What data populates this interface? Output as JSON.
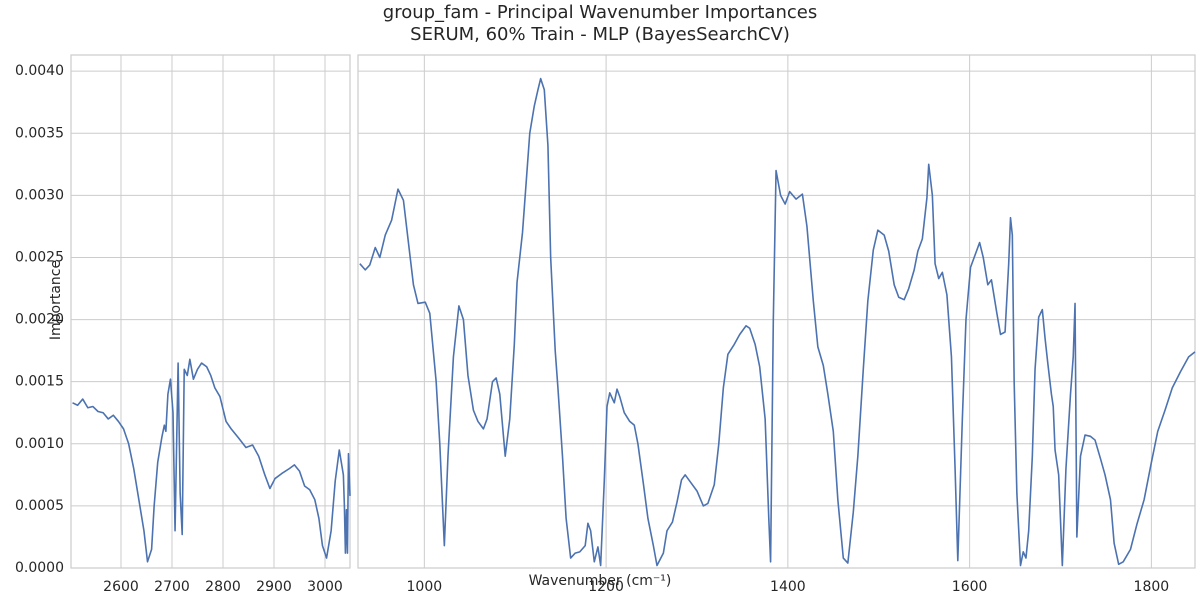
{
  "chart_data": {
    "type": "line",
    "title": "group_fam - Principal Wavenumber Importances",
    "subtitle": "SERUM, 60% Train - MLP (BayesSearchCV)",
    "xlabel": "Wavenumber (cm⁻¹)",
    "ylabel": "Importance",
    "color": "#4c72b0",
    "grid": true,
    "ylim": [
      0,
      0.00413
    ],
    "yticks": [
      {
        "value": 0,
        "label": "0.0000"
      },
      0.0005,
      {
        "value": 0.001,
        "label": "0.0010"
      },
      0.0015,
      {
        "value": 0.002,
        "label": "0.0020"
      },
      0.0025,
      {
        "value": 0.003,
        "label": "0.0030"
      },
      0.0035,
      {
        "value": 0.004,
        "label": "0.0040"
      }
    ],
    "panels": [
      {
        "xlim": [
          2502,
          3049
        ],
        "xticks": [
          2600,
          2700,
          2800,
          2900,
          3000
        ],
        "x": [
          2505,
          2515,
          2525,
          2535,
          2545,
          2555,
          2565,
          2575,
          2585,
          2595,
          2605,
          2615,
          2625,
          2635,
          2645,
          2652,
          2660,
          2665,
          2672,
          2680,
          2685,
          2688,
          2692,
          2697,
          2702,
          2706,
          2712,
          2716,
          2720,
          2724,
          2730,
          2735,
          2742,
          2750,
          2758,
          2768,
          2776,
          2784,
          2794,
          2806,
          2816,
          2830,
          2845,
          2858,
          2870,
          2882,
          2892,
          2902,
          2915,
          2930,
          2940,
          2950,
          2960,
          2970,
          2980,
          2988,
          2995,
          3003,
          3012,
          3020,
          3028,
          3036,
          3038,
          3040,
          3042,
          3044,
          3046,
          3049
        ],
        "values": [
          0.00133,
          0.00131,
          0.00136,
          0.00129,
          0.0013,
          0.00126,
          0.00125,
          0.0012,
          0.00123,
          0.00118,
          0.00112,
          0.001,
          0.0008,
          0.00055,
          0.0003,
          5e-05,
          0.00015,
          0.0005,
          0.00085,
          0.00105,
          0.00115,
          0.0011,
          0.0014,
          0.00152,
          0.00125,
          0.0003,
          0.00165,
          0.0006,
          0.00027,
          0.0016,
          0.00155,
          0.00168,
          0.00152,
          0.0016,
          0.00165,
          0.00162,
          0.00155,
          0.00145,
          0.00138,
          0.00118,
          0.00112,
          0.00105,
          0.00097,
          0.00099,
          0.0009,
          0.00075,
          0.00064,
          0.00072,
          0.00076,
          0.0008,
          0.00083,
          0.00078,
          0.00066,
          0.00063,
          0.00055,
          0.0004,
          0.00018,
          8e-05,
          0.0003,
          0.0007,
          0.00095,
          0.00075,
          0.0005,
          0.00012,
          0.00047,
          0.00012,
          0.00092,
          0.00058
        ]
      },
      {
        "xlim": [
          927,
          1848
        ],
        "xticks": [
          1000,
          1200,
          1400,
          1600,
          1800
        ],
        "x": [
          929,
          935,
          940,
          946,
          951,
          957,
          964,
          971,
          977,
          982,
          988,
          993,
          1001,
          1006,
          1013,
          1017,
          1022,
          1026,
          1032,
          1038,
          1043,
          1048,
          1054,
          1059,
          1065,
          1069,
          1075,
          1079,
          1083,
          1089,
          1094,
          1099,
          1102,
          1108,
          1112,
          1116,
          1121,
          1125,
          1128,
          1132,
          1136,
          1139,
          1144,
          1147,
          1152,
          1156,
          1161,
          1166,
          1171,
          1177,
          1180,
          1183,
          1187,
          1191,
          1194,
          1198,
          1201,
          1204,
          1209,
          1212,
          1215,
          1220,
          1226,
          1231,
          1235,
          1241,
          1246,
          1252,
          1256,
          1263,
          1267,
          1273,
          1278,
          1283,
          1287,
          1292,
          1300,
          1307,
          1312,
          1319,
          1324,
          1329,
          1334,
          1341,
          1347,
          1354,
          1358,
          1364,
          1369,
          1375,
          1379,
          1381,
          1384,
          1387,
          1392,
          1397,
          1402,
          1409,
          1416,
          1421,
          1428,
          1433,
          1439,
          1444,
          1450,
          1455,
          1461,
          1466,
          1472,
          1477,
          1483,
          1488,
          1494,
          1499,
          1506,
          1511,
          1517,
          1522,
          1528,
          1533,
          1539,
          1543,
          1548,
          1553,
          1555,
          1559,
          1562,
          1566,
          1570,
          1575,
          1580,
          1584,
          1587,
          1592,
          1596,
          1601,
          1606,
          1611,
          1615,
          1620,
          1624,
          1630,
          1634,
          1639,
          1643,
          1645,
          1647,
          1649,
          1652,
          1656,
          1659,
          1662,
          1665,
          1669,
          1672,
          1676,
          1680,
          1683,
          1686,
          1690,
          1692,
          1694,
          1698,
          1702,
          1706,
          1711,
          1714,
          1716,
          1718,
          1722,
          1727,
          1733,
          1738,
          1744,
          1749,
          1755,
          1759,
          1764,
          1769,
          1777,
          1784,
          1792,
          1800,
          1807,
          1815,
          1823,
          1832,
          1841,
          1848
        ],
        "values": [
          0.00245,
          0.0024,
          0.00244,
          0.00258,
          0.0025,
          0.00268,
          0.0028,
          0.00305,
          0.00296,
          0.00265,
          0.00228,
          0.00213,
          0.00214,
          0.00205,
          0.0015,
          0.001,
          0.00018,
          0.0009,
          0.0017,
          0.00211,
          0.002,
          0.00155,
          0.00127,
          0.00118,
          0.00112,
          0.0012,
          0.0015,
          0.00153,
          0.0014,
          0.0009,
          0.0012,
          0.0018,
          0.0023,
          0.0027,
          0.0031,
          0.0035,
          0.00372,
          0.00385,
          0.00394,
          0.00385,
          0.0034,
          0.0025,
          0.00175,
          0.00145,
          0.0009,
          0.0004,
          8e-05,
          0.00012,
          0.00013,
          0.00018,
          0.00036,
          0.0003,
          5e-05,
          0.00017,
          2e-05,
          0.0007,
          0.0013,
          0.00141,
          0.00133,
          0.00144,
          0.00138,
          0.00125,
          0.00118,
          0.00115,
          0.001,
          0.00068,
          0.0004,
          0.00018,
          2e-05,
          0.00012,
          0.0003,
          0.00037,
          0.00053,
          0.00071,
          0.00075,
          0.0007,
          0.00062,
          0.0005,
          0.00052,
          0.00067,
          0.001,
          0.00145,
          0.00172,
          0.0018,
          0.00188,
          0.00195,
          0.00193,
          0.0018,
          0.00162,
          0.0012,
          0.0004,
          5e-05,
          0.002,
          0.0032,
          0.003,
          0.00293,
          0.00303,
          0.00297,
          0.00301,
          0.00275,
          0.00215,
          0.00178,
          0.00163,
          0.0014,
          0.0011,
          0.00055,
          8e-05,
          4e-05,
          0.00045,
          0.0009,
          0.0016,
          0.00215,
          0.00256,
          0.00272,
          0.00268,
          0.00255,
          0.00228,
          0.00218,
          0.00216,
          0.00225,
          0.0024,
          0.00255,
          0.00265,
          0.00298,
          0.00325,
          0.003,
          0.00245,
          0.00233,
          0.00238,
          0.0022,
          0.0017,
          0.0008,
          6e-05,
          0.0012,
          0.002,
          0.00242,
          0.00252,
          0.00262,
          0.0025,
          0.00228,
          0.00232,
          0.00205,
          0.00188,
          0.0019,
          0.00245,
          0.00282,
          0.00268,
          0.0015,
          0.0006,
          2e-05,
          0.00013,
          8e-05,
          0.0003,
          0.0009,
          0.0016,
          0.00202,
          0.00208,
          0.00185,
          0.00165,
          0.0014,
          0.0013,
          0.00095,
          0.00075,
          2e-05,
          0.0008,
          0.0014,
          0.0017,
          0.00213,
          0.00025,
          0.0009,
          0.00107,
          0.00106,
          0.00103,
          0.00088,
          0.00075,
          0.00055,
          0.0002,
          3e-05,
          5e-05,
          0.00015,
          0.00035,
          0.00055,
          0.00085,
          0.0011,
          0.00127,
          0.00145,
          0.00158,
          0.0017,
          0.00174
        ]
      }
    ]
  }
}
